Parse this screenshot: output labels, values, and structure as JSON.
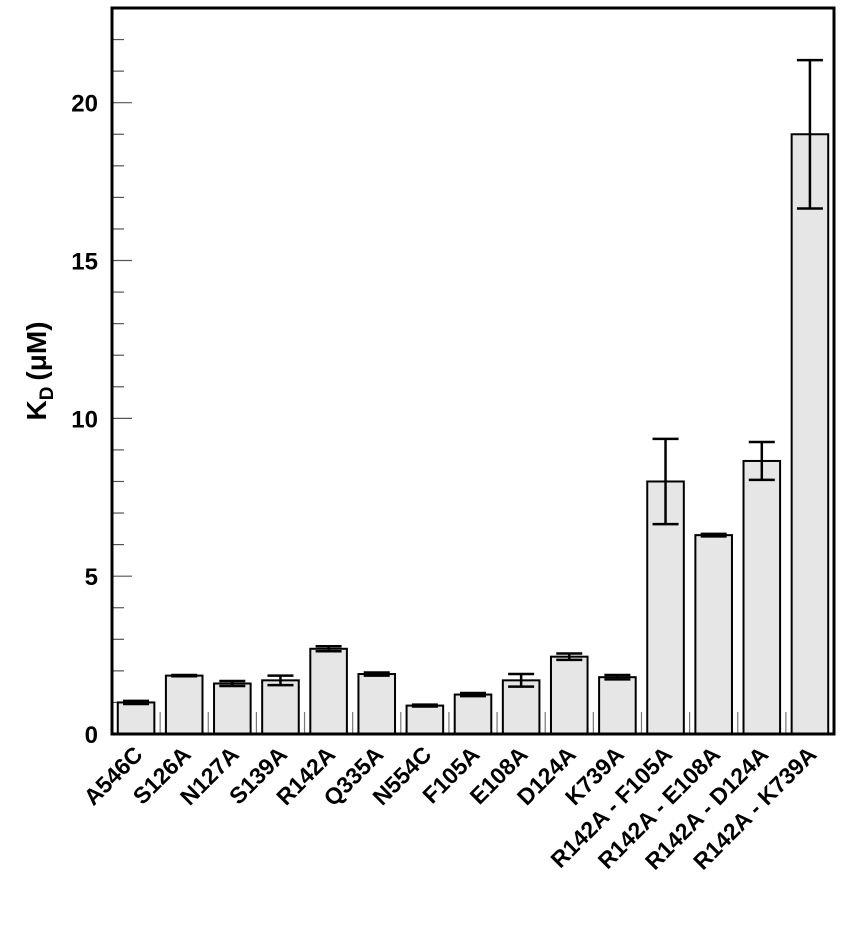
{
  "chart_data": {
    "type": "bar",
    "title": "",
    "xlabel": "",
    "ylabel": "K",
    "ylabel_subscript": "D",
    "ylabel_unit": "(μM)",
    "ylim": [
      0,
      23
    ],
    "yticks": [
      0,
      5,
      10,
      15,
      20
    ],
    "grid": false,
    "colors": {
      "bar_fill": "#e6e6e6",
      "bar_stroke": "#000000",
      "axis": "#000000"
    },
    "categories": [
      "A546C",
      "S126A",
      "N127A",
      "S139A",
      "R142A",
      "Q335A",
      "N554C",
      "F105A",
      "E108A",
      "D124A",
      "K739A",
      "R142A - F105A",
      "R142A - E108A",
      "R142A - D124A",
      "R142A - K739A"
    ],
    "values": [
      1.0,
      1.85,
      1.6,
      1.7,
      2.7,
      1.9,
      0.9,
      1.25,
      1.7,
      2.45,
      1.8,
      8.0,
      6.3,
      8.65,
      19.0
    ],
    "errors": [
      0.05,
      0.02,
      0.08,
      0.15,
      0.08,
      0.05,
      0.03,
      0.05,
      0.2,
      0.1,
      0.07,
      1.35,
      0.04,
      0.6,
      2.35
    ]
  }
}
